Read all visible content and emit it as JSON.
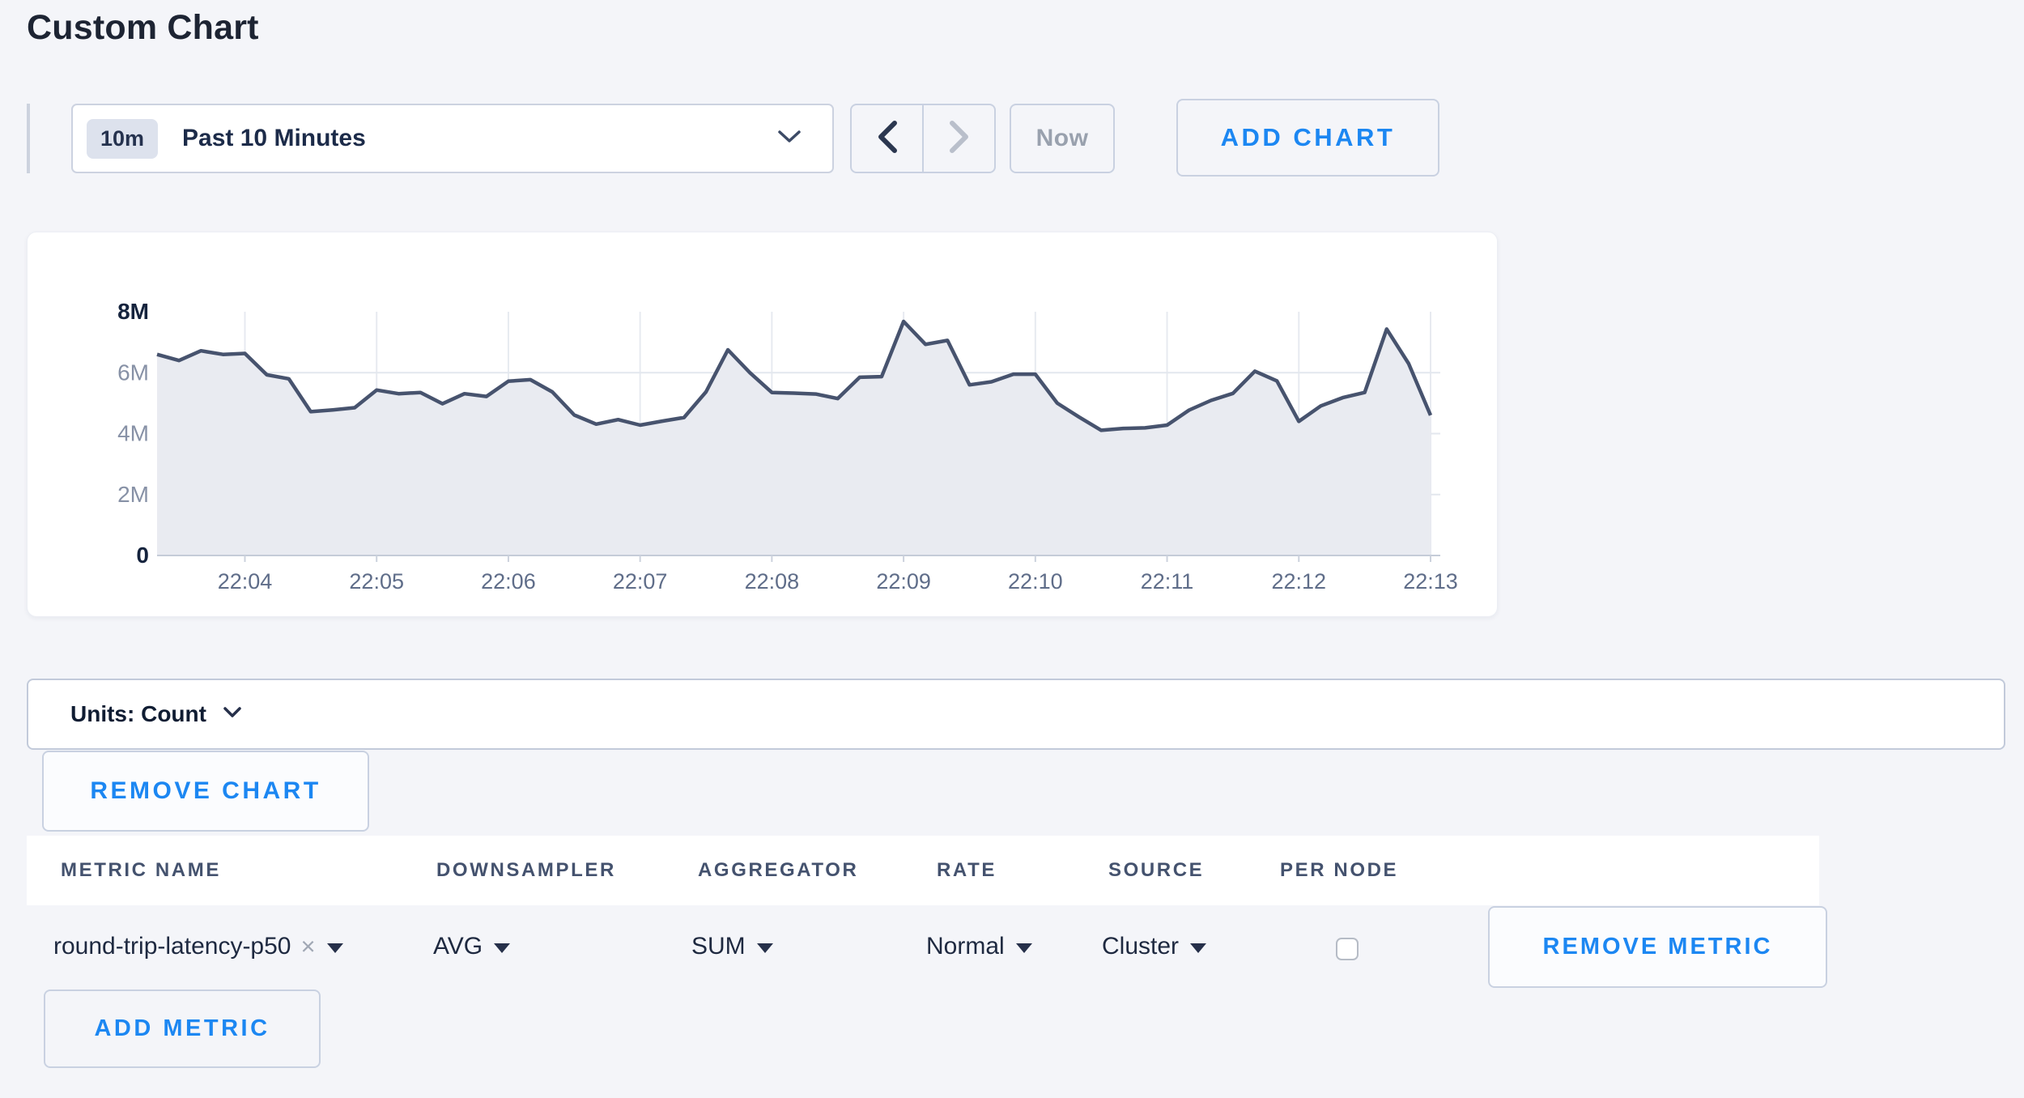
{
  "page": {
    "title": "Custom Chart",
    "background_color": "#f4f5f9",
    "accent_blue": "#1c87f2"
  },
  "toolbar": {
    "time_window_badge": "10m",
    "time_window_label": "Past 10 Minutes",
    "now_label": "Now",
    "add_chart_label": "ADD CHART"
  },
  "chart_data": {
    "type": "area",
    "title": "",
    "unit": "Count",
    "x_start": "22:03:20",
    "x_interval_seconds": 10,
    "x_tick_labels": [
      "22:04",
      "22:05",
      "22:06",
      "22:07",
      "22:08",
      "22:09",
      "22:10",
      "22:11",
      "22:12",
      "22:13"
    ],
    "y_tick_labels": [
      "0",
      "2M",
      "4M",
      "6M",
      "8M"
    ],
    "ylim_millions": [
      0,
      8
    ],
    "grid": true,
    "legend": "none",
    "line_color": "#47536e",
    "fill_color": "#e9ebf1",
    "values_millions": [
      6.6,
      6.4,
      6.72,
      6.6,
      6.63,
      5.93,
      5.8,
      4.72,
      4.78,
      4.85,
      5.43,
      5.31,
      5.35,
      4.98,
      5.31,
      5.22,
      5.72,
      5.77,
      5.37,
      4.61,
      4.31,
      4.46,
      4.28,
      4.41,
      4.53,
      5.37,
      6.75,
      6.0,
      5.35,
      5.33,
      5.3,
      5.15,
      5.85,
      5.87,
      7.68,
      6.93,
      7.06,
      5.6,
      5.7,
      5.95,
      5.95,
      5.0,
      4.54,
      4.11,
      4.17,
      4.19,
      4.28,
      4.77,
      5.09,
      5.32,
      6.05,
      5.73,
      4.4,
      4.91,
      5.18,
      5.35,
      7.43,
      6.3,
      4.6
    ]
  },
  "units_bar": {
    "label": "Units: Count"
  },
  "chart_actions": {
    "remove_chart_label": "REMOVE CHART"
  },
  "metrics_table": {
    "columns": [
      "METRIC NAME",
      "DOWNSAMPLER",
      "AGGREGATOR",
      "RATE",
      "SOURCE",
      "PER NODE"
    ],
    "rows": [
      {
        "metric_name": "round-trip-latency-p50",
        "downsampler": "AVG",
        "aggregator": "SUM",
        "rate": "Normal",
        "source": "Cluster",
        "per_node_checked": false,
        "remove_label": "REMOVE METRIC"
      }
    ],
    "add_metric_label": "ADD METRIC"
  },
  "glyphs": {
    "remove_tag": "×"
  }
}
